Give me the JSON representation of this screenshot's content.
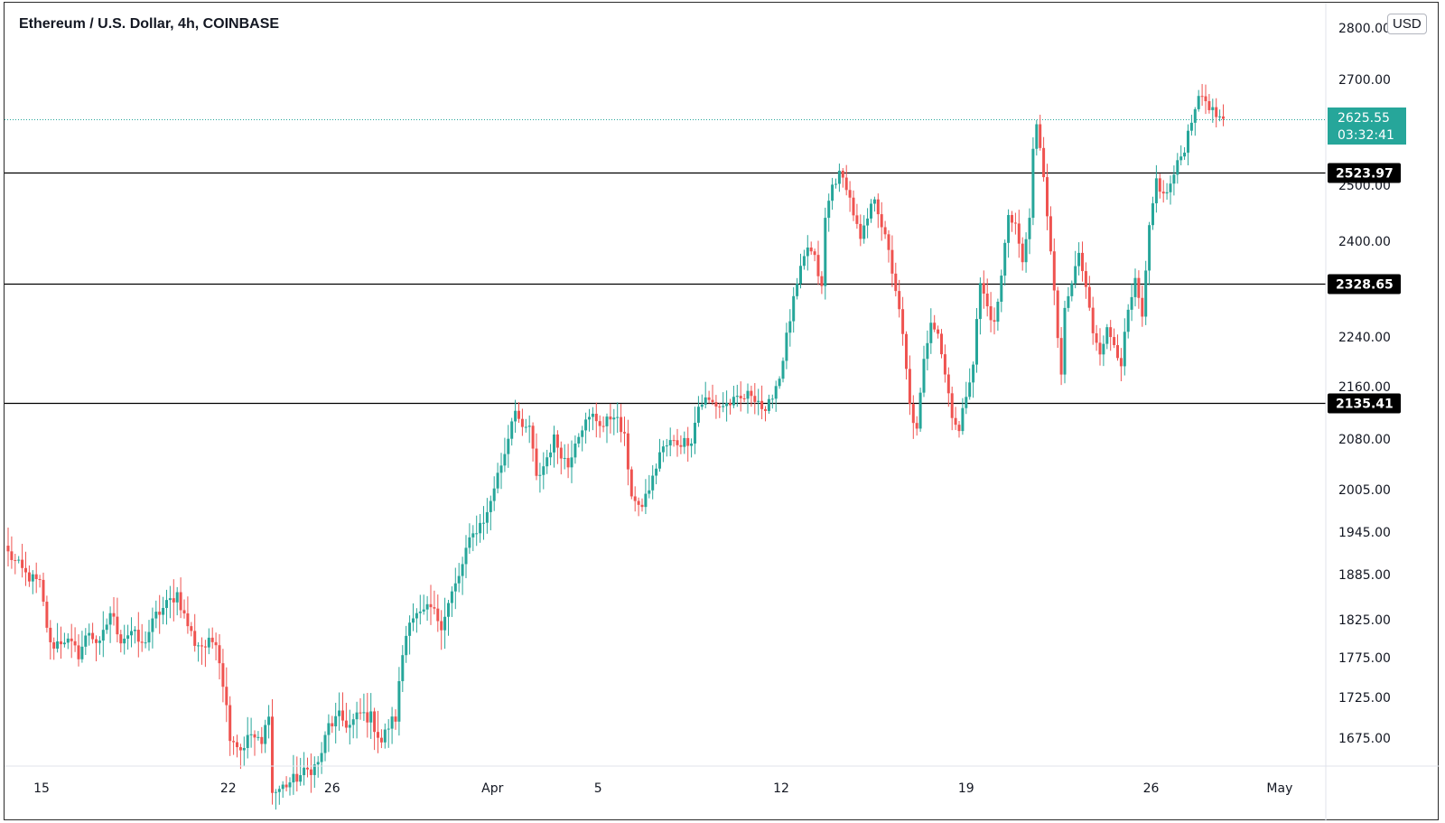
{
  "title": "Ethereum / U.S. Dollar, 4h, COINBASE",
  "currency_button": "USD",
  "current_price": {
    "value": "2625.55",
    "countdown": "03:32:41"
  },
  "colors": {
    "up": "#26a69a",
    "down": "#ef5350",
    "last_price_line": "#26a69a",
    "level": "#000000"
  },
  "chart_data": {
    "type": "candlestick",
    "interval": "4h",
    "x_tick_labels": [
      "15",
      "22",
      "26",
      "Apr",
      "5",
      "12",
      "19",
      "26",
      "May"
    ],
    "y_tick_labels": [
      "2800.00",
      "2700.00",
      "2500.00",
      "2400.00",
      "2240.00",
      "2160.00",
      "2080.00",
      "2005.00",
      "1945.00",
      "1885.00",
      "1825.00",
      "1775.00",
      "1725.00",
      "1675.00"
    ],
    "horizontal_levels": [
      2523.97,
      2328.65,
      2135.41
    ],
    "ylim": [
      1625,
      2800
    ],
    "anchors": [
      [
        0,
        1915
      ],
      [
        5,
        1885
      ],
      [
        9,
        1872
      ],
      [
        12,
        1790
      ],
      [
        16,
        1800
      ],
      [
        20,
        1780
      ],
      [
        23,
        1810
      ],
      [
        26,
        1790
      ],
      [
        29,
        1835
      ],
      [
        32,
        1800
      ],
      [
        35,
        1810
      ],
      [
        38,
        1790
      ],
      [
        42,
        1830
      ],
      [
        46,
        1850
      ],
      [
        48,
        1860
      ],
      [
        50,
        1830
      ],
      [
        53,
        1795
      ],
      [
        56,
        1790
      ],
      [
        59,
        1800
      ],
      [
        61,
        1745
      ],
      [
        63,
        1680
      ],
      [
        66,
        1660
      ],
      [
        69,
        1680
      ],
      [
        72,
        1665
      ],
      [
        74,
        1710
      ],
      [
        75,
        1600
      ],
      [
        88,
        1640
      ],
      [
        91,
        1690
      ],
      [
        94,
        1700
      ],
      [
        97,
        1690
      ],
      [
        100,
        1705
      ],
      [
        103,
        1700
      ],
      [
        106,
        1670
      ],
      [
        108,
        1690
      ],
      [
        110,
        1700
      ],
      [
        112,
        1780
      ],
      [
        114,
        1830
      ],
      [
        117,
        1830
      ],
      [
        120,
        1840
      ],
      [
        123,
        1820
      ],
      [
        126,
        1860
      ],
      [
        128,
        1880
      ],
      [
        130,
        1920
      ],
      [
        133,
        1950
      ],
      [
        136,
        1970
      ],
      [
        138,
        2010
      ],
      [
        141,
        2060
      ],
      [
        143,
        2110
      ],
      [
        144,
        2130
      ],
      [
        146,
        2090
      ],
      [
        148,
        2100
      ],
      [
        150,
        2020
      ],
      [
        152,
        2040
      ],
      [
        155,
        2080
      ],
      [
        157,
        2060
      ],
      [
        159,
        2040
      ],
      [
        161,
        2080
      ],
      [
        163,
        2100
      ],
      [
        166,
        2115
      ],
      [
        169,
        2100
      ],
      [
        172,
        2120
      ],
      [
        175,
        2080
      ],
      [
        177,
        2000
      ],
      [
        179,
        1975
      ],
      [
        181,
        1995
      ],
      [
        183,
        2020
      ],
      [
        185,
        2060
      ],
      [
        188,
        2075
      ],
      [
        191,
        2075
      ],
      [
        194,
        2080
      ],
      [
        196,
        2130
      ],
      [
        198,
        2140
      ],
      [
        202,
        2130
      ],
      [
        205,
        2135
      ],
      [
        208,
        2140
      ],
      [
        211,
        2150
      ],
      [
        213,
        2140
      ],
      [
        215,
        2115
      ],
      [
        217,
        2150
      ],
      [
        219,
        2175
      ],
      [
        221,
        2240
      ],
      [
        223,
        2300
      ],
      [
        225,
        2350
      ],
      [
        227,
        2390
      ],
      [
        229,
        2370
      ],
      [
        231,
        2320
      ],
      [
        232,
        2440
      ],
      [
        234,
        2500
      ],
      [
        236,
        2520
      ],
      [
        238,
        2500
      ],
      [
        240,
        2450
      ],
      [
        242,
        2400
      ],
      [
        244,
        2440
      ],
      [
        246,
        2480
      ],
      [
        248,
        2430
      ],
      [
        250,
        2380
      ],
      [
        252,
        2320
      ],
      [
        254,
        2240
      ],
      [
        256,
        2130
      ],
      [
        258,
        2090
      ],
      [
        260,
        2200
      ],
      [
        262,
        2270
      ],
      [
        264,
        2250
      ],
      [
        266,
        2180
      ],
      [
        268,
        2120
      ],
      [
        270,
        2090
      ],
      [
        272,
        2150
      ],
      [
        274,
        2200
      ],
      [
        276,
        2330
      ],
      [
        278,
        2290
      ],
      [
        280,
        2260
      ],
      [
        282,
        2340
      ],
      [
        284,
        2450
      ],
      [
        286,
        2430
      ],
      [
        288,
        2360
      ],
      [
        290,
        2450
      ],
      [
        291,
        2560
      ],
      [
        292,
        2610
      ],
      [
        294,
        2520
      ],
      [
        296,
        2380
      ],
      [
        298,
        2240
      ],
      [
        299,
        2180
      ],
      [
        300,
        2280
      ],
      [
        302,
        2330
      ],
      [
        304,
        2380
      ],
      [
        306,
        2320
      ],
      [
        308,
        2250
      ],
      [
        310,
        2220
      ],
      [
        312,
        2250
      ],
      [
        314,
        2230
      ],
      [
        316,
        2200
      ],
      [
        318,
        2280
      ],
      [
        320,
        2330
      ],
      [
        322,
        2270
      ],
      [
        324,
        2420
      ],
      [
        326,
        2510
      ],
      [
        328,
        2480
      ],
      [
        330,
        2500
      ],
      [
        332,
        2540
      ],
      [
        334,
        2570
      ],
      [
        335,
        2600
      ],
      [
        337,
        2650
      ],
      [
        339,
        2670
      ],
      [
        341,
        2650
      ],
      [
        343,
        2630
      ],
      [
        345,
        2625.55
      ]
    ]
  }
}
